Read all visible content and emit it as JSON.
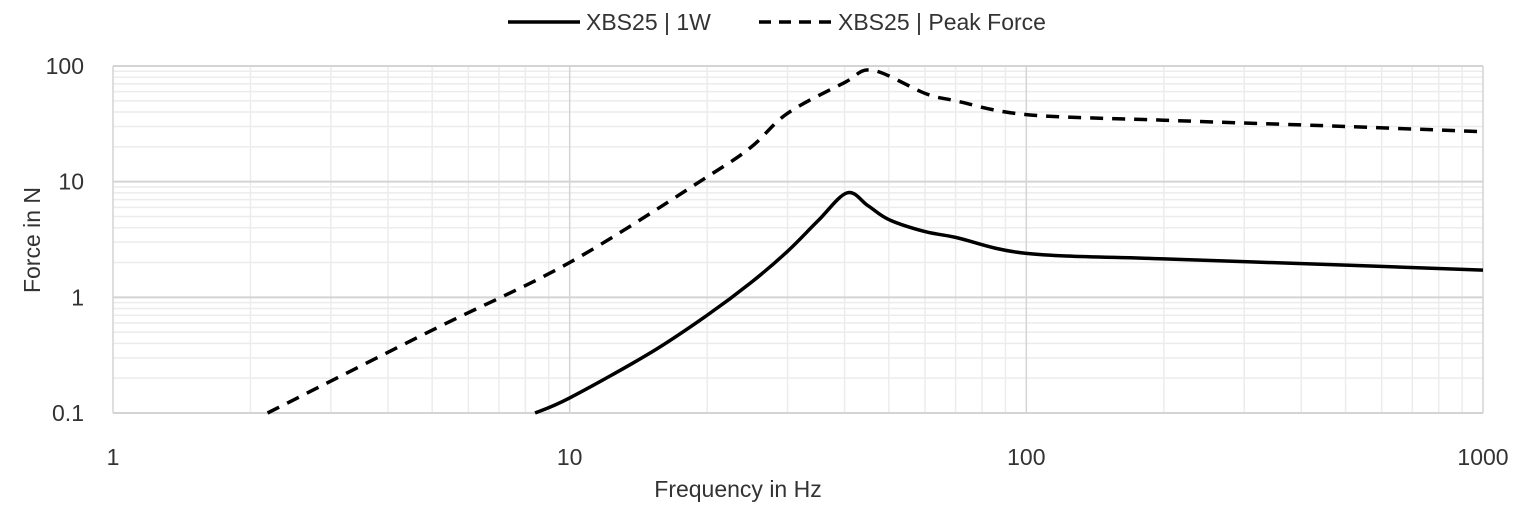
{
  "chart_data": {
    "type": "line",
    "title": "",
    "xlabel": "Frequency in Hz",
    "ylabel": "Force in N",
    "xscale": "log",
    "yscale": "log",
    "xlim": [
      1,
      1000
    ],
    "ylim": [
      0.1,
      100
    ],
    "x_ticks": [
      "1",
      "10",
      "100",
      "1000"
    ],
    "y_ticks": [
      "0.1",
      "1",
      "10",
      "100"
    ],
    "grid": true,
    "legend_position": "top-center",
    "series": [
      {
        "name": "XBS25 | 1W",
        "style": "solid",
        "color": "#000000",
        "x": [
          8.4,
          10,
          15,
          20,
          25,
          30,
          35,
          40.5,
          45,
          50,
          60,
          70,
          100,
          200,
          500,
          1000
        ],
        "y": [
          0.1,
          0.135,
          0.33,
          0.7,
          1.35,
          2.5,
          4.6,
          8.0,
          6.2,
          4.7,
          3.7,
          3.3,
          2.4,
          2.15,
          1.9,
          1.72
        ]
      },
      {
        "name": "XBS25 | Peak Force",
        "style": "dashed",
        "color": "#000000",
        "x": [
          2.18,
          5,
          10,
          20,
          25,
          30,
          40,
          46,
          60,
          70,
          100,
          200,
          500,
          1000
        ],
        "y": [
          0.1,
          0.52,
          2.0,
          11,
          20,
          39,
          72,
          92,
          58,
          50,
          38,
          34,
          30,
          27
        ]
      }
    ]
  }
}
